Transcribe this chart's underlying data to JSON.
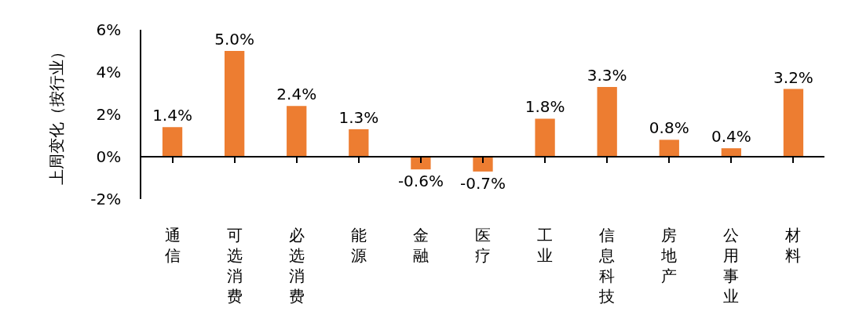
{
  "chart_data": {
    "type": "bar",
    "ylabel": "上周变化（按行业）",
    "categories": [
      "通信",
      "可选消费",
      "必选消费",
      "能源",
      "金融",
      "医疗",
      "工业",
      "信息科技",
      "房地产",
      "公用事业",
      "材料"
    ],
    "values": [
      1.4,
      5.0,
      2.4,
      1.3,
      -0.6,
      -0.7,
      1.8,
      3.3,
      0.8,
      0.4,
      3.2
    ],
    "value_labels": [
      "1.4%",
      "5.0%",
      "2.4%",
      "1.3%",
      "-0.6%",
      "-0.7%",
      "1.8%",
      "3.3%",
      "0.8%",
      "0.4%",
      "3.2%"
    ],
    "color": "#ed7d31",
    "ylim": [
      -2,
      6
    ],
    "yticks": [
      {
        "value": -2,
        "label": "-2%"
      },
      {
        "value": 0,
        "label": "0%"
      },
      {
        "value": 2,
        "label": "2%"
      },
      {
        "value": 4,
        "label": "4%"
      },
      {
        "value": 6,
        "label": "6%"
      }
    ]
  }
}
